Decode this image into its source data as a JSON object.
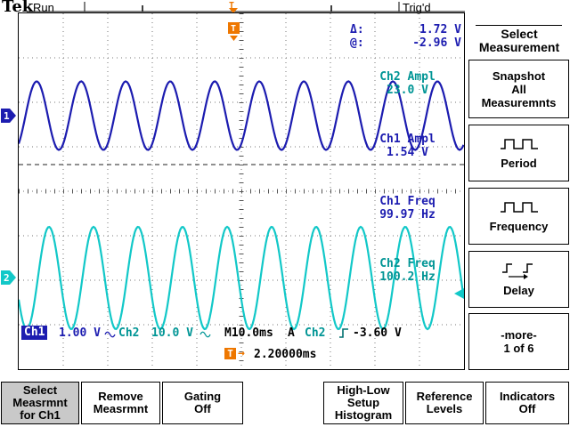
{
  "colors": {
    "ch1": "#1c1cb0",
    "ch2": "#12c8c8",
    "ch2_text": "#009595",
    "accent_orange": "#ee7700",
    "selected_button_bg": "#c9c9c9"
  },
  "header": {
    "brand": "Tek",
    "acq_status": "Run",
    "trig_status": "Trig'd"
  },
  "cursor_readout": {
    "delta_label": "Δ:",
    "delta_value": "1.72 V",
    "at_label": "@:",
    "at_value": "-2.96 V"
  },
  "measurements": [
    {
      "label": "Ch2 Ampl",
      "value": "23.0 V",
      "channel": "ch2"
    },
    {
      "label": "Ch1 Ampl",
      "value": "1.54 V",
      "channel": "ch1"
    },
    {
      "label": "Ch1 Freq",
      "value": "99.97 Hz",
      "channel": "ch1"
    },
    {
      "label": "Ch2 Freq",
      "value": "100.2 Hz",
      "channel": "ch2"
    }
  ],
  "status_bar": {
    "ch1_label": "Ch1",
    "ch1_scale": "1.00 V",
    "ch2_label": "Ch2",
    "ch2_scale": "10.0 V",
    "timebase": "M10.0ms",
    "trig_mode": "A",
    "trig_source": "Ch2",
    "trig_level": "-3.60 V"
  },
  "delay_readout": {
    "t_label": "T",
    "value": "2.20000ms"
  },
  "side_menu": {
    "title": "Select\nMeasurement",
    "items": [
      {
        "label": "Snapshot\nAll\nMeasuremnts",
        "icon": "none"
      },
      {
        "label": "Period",
        "icon": "square-wave-icon"
      },
      {
        "label": "Frequency",
        "icon": "square-wave-icon"
      },
      {
        "label": "Delay",
        "icon": "delay-edges-icon"
      },
      {
        "label": "-more-\n1 of 6",
        "icon": "none"
      }
    ]
  },
  "bottom_menu": [
    {
      "label": "Select\nMeasrmnt\nfor Ch1",
      "selected": true
    },
    {
      "label": "Remove\nMeasrmnt",
      "selected": false
    },
    {
      "label": "Gating\nOff",
      "selected": false
    },
    {
      "label": "High-Low\nSetup\nHistogram",
      "selected": false
    },
    {
      "label": "Reference\nLevels",
      "selected": false
    },
    {
      "label": "Indicators\nOff",
      "selected": false
    }
  ],
  "waveforms": [
    {
      "name": "ch1",
      "color": "#1c1cb0",
      "center_div": 2.3,
      "amplitude_div": 0.77,
      "period_div": 1.0,
      "phase_deg": -55
    },
    {
      "name": "ch2",
      "color": "#12c8c8",
      "center_div": 5.95,
      "amplitude_div": 1.15,
      "period_div": 1.0,
      "phase_deg": -155
    }
  ]
}
